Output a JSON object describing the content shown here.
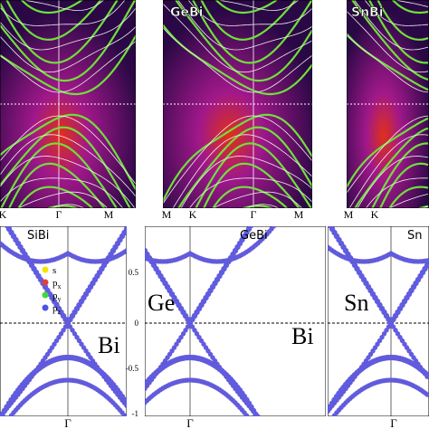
{
  "top": {
    "panels": [
      {
        "label": null
      },
      {
        "label": "GeBi"
      },
      {
        "label": "SnBi"
      }
    ],
    "kpoints": [
      [
        "K",
        "Γ",
        "M"
      ],
      [
        "M",
        "K",
        "Γ",
        "M"
      ],
      [
        "M",
        "K"
      ]
    ]
  },
  "bottom": {
    "panels": [
      {
        "label": "SiBi",
        "element": "Bi"
      },
      {
        "label": "GeBi",
        "elements": [
          "Ge",
          "Bi"
        ]
      },
      {
        "label": "Sn",
        "element": "Sn"
      }
    ],
    "yticks": [
      "0.5",
      "0",
      "-0.5",
      "-1"
    ],
    "kpoints": [
      "Γ",
      "Γ",
      "Γ"
    ],
    "legend": [
      {
        "main": "s"
      },
      {
        "main": "p",
        "sub": "x"
      },
      {
        "main": "p",
        "sub": "y"
      },
      {
        "main": "p",
        "sub": "z"
      }
    ]
  }
}
